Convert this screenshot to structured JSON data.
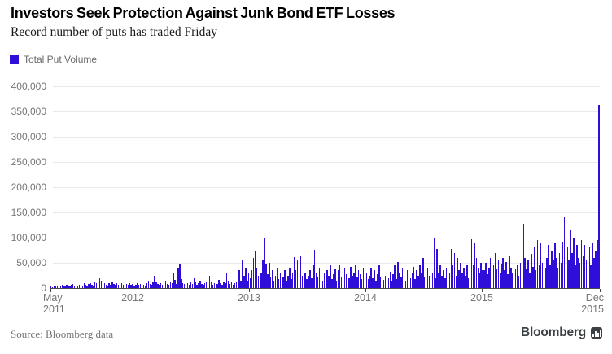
{
  "header": {
    "title": "Investors Seek Protection Against Junk Bond ETF Losses",
    "subtitle": "Record number of puts has traded Friday"
  },
  "legend": {
    "label": "Total Put Volume",
    "swatch_color": "#2E0ED8"
  },
  "footer": {
    "source": "Source: Bloomberg data",
    "brand": "Bloomberg"
  },
  "colors": {
    "bar": "#2E0ED8",
    "gridline": "#e5eaea",
    "axis": "#4a4a4a",
    "axis_text": "#757575",
    "background": "#ffffff"
  },
  "chart_data": {
    "type": "bar",
    "title": "Investors Seek Protection Against Junk Bond ETF Losses",
    "subtitle": "Record number of puts has traded Friday",
    "xlabel": "",
    "ylabel": "",
    "ylim": [
      0,
      400000
    ],
    "grid": "horizontal",
    "legend_position": "top-left",
    "x_range": [
      "May 2011",
      "Dec 2015"
    ],
    "yticks": [
      {
        "value": 400000,
        "label": "400,000"
      },
      {
        "value": 350000,
        "label": "350,000"
      },
      {
        "value": 300000,
        "label": "300,000"
      },
      {
        "value": 250000,
        "label": "250,000"
      },
      {
        "value": 200000,
        "label": "200,000"
      },
      {
        "value": 150000,
        "label": "150,000"
      },
      {
        "value": 100000,
        "label": "100,000"
      },
      {
        "value": 50000,
        "label": "50,000"
      },
      {
        "value": 0,
        "label": "0"
      }
    ],
    "x_axis": {
      "start_line1": "May",
      "start_line2": "2011",
      "end_line1": "Dec",
      "end_line2": "2015",
      "year_ticks": [
        {
          "label": "2012",
          "x": 101
        },
        {
          "label": "2013",
          "x": 244
        },
        {
          "label": "2014",
          "x": 387
        },
        {
          "label": "2015",
          "x": 530
        }
      ],
      "edge_tick_x": [
        0,
        675
      ]
    },
    "series": [
      {
        "name": "Total Put Volume",
        "color": "#2E0ED8",
        "peak_value": 363000,
        "values": [
          3000,
          2000,
          4000,
          3000,
          5000,
          4000,
          3000,
          6000,
          5000,
          4000,
          7000,
          5000,
          4000,
          6000,
          8000,
          5000,
          4000,
          3000,
          6000,
          7000,
          5000,
          9000,
          6000,
          4000,
          8000,
          10000,
          7000,
          5000,
          12000,
          9000,
          6000,
          21000,
          14000,
          8000,
          10000,
          7000,
          5000,
          9000,
          6000,
          11000,
          8000,
          6000,
          10000,
          7000,
          12000,
          9000,
          7000,
          5000,
          8000,
          6000,
          9000,
          7000,
          8000,
          5000,
          7000,
          10000,
          6000,
          8000,
          12000,
          7000,
          5000,
          9000,
          15000,
          8000,
          6000,
          11000,
          25000,
          13000,
          8000,
          6000,
          10000,
          7000,
          9000,
          14000,
          8000,
          6000,
          12000,
          9000,
          30000,
          16000,
          8000,
          40000,
          47000,
          18000,
          10000,
          8000,
          13000,
          9000,
          7000,
          11000,
          8000,
          20000,
          12000,
          7000,
          9000,
          15000,
          8000,
          6000,
          10000,
          13000,
          8000,
          25000,
          11000,
          7000,
          9000,
          12000,
          8000,
          16000,
          10000,
          7000,
          13000,
          9000,
          30000,
          14000,
          8000,
          11000,
          7000,
          9000,
          12000,
          8000,
          35000,
          15000,
          55000,
          25000,
          40000,
          15000,
          30000,
          20000,
          35000,
          60000,
          74000,
          40000,
          25000,
          18000,
          30000,
          55000,
          100000,
          48000,
          28000,
          50000,
          22000,
          35000,
          15000,
          25000,
          40000,
          18000,
          30000,
          12000,
          22000,
          35000,
          15000,
          25000,
          40000,
          18000,
          30000,
          62000,
          35000,
          55000,
          30000,
          65000,
          25000,
          40000,
          30000,
          18000,
          25000,
          35000,
          20000,
          45000,
          76000,
          30000,
          22000,
          40000,
          25000,
          15000,
          30000,
          20000,
          35000,
          25000,
          45000,
          18000,
          28000,
          38000,
          15000,
          35000,
          45000,
          22000,
          30000,
          40000,
          28000,
          35000,
          20000,
          42000,
          25000,
          30000,
          45000,
          22000,
          35000,
          28000,
          18000,
          40000,
          25000,
          30000,
          18000,
          25000,
          40000,
          20000,
          35000,
          15000,
          28000,
          45000,
          22000,
          35000,
          16000,
          25000,
          38000,
          20000,
          32000,
          14000,
          28000,
          45000,
          18000,
          52000,
          30000,
          22000,
          40000,
          25000,
          15000,
          35000,
          48000,
          20000,
          30000,
          42000,
          18000,
          35000,
          25000,
          45000,
          30000,
          60000,
          22000,
          35000,
          40000,
          25000,
          55000,
          30000,
          100000,
          20000,
          78000,
          30000,
          45000,
          25000,
          35000,
          20000,
          40000,
          55000,
          30000,
          78000,
          45000,
          70000,
          25000,
          60000,
          35000,
          50000,
          30000,
          40000,
          25000,
          45000,
          20000,
          35000,
          97000,
          45000,
          90000,
          60000,
          40000,
          30000,
          50000,
          35000,
          35000,
          50000,
          28000,
          40000,
          60000,
          32000,
          45000,
          70000,
          38000,
          55000,
          30000,
          48000,
          60000,
          35000,
          52000,
          28000,
          65000,
          40000,
          30000,
          55000,
          38000,
          45000,
          25000,
          50000,
          45000,
          127000,
          60000,
          38000,
          55000,
          30000,
          68000,
          42000,
          80000,
          35000,
          95000,
          45000,
          90000,
          50000,
          70000,
          40000,
          60000,
          85000,
          45000,
          75000,
          55000,
          88000,
          60000,
          40000,
          70000,
          50000,
          92000,
          140000,
          45000,
          80000,
          55000,
          115000,
          70000,
          100000,
          45000,
          85000,
          60000,
          50000,
          95000,
          65000,
          85000,
          55000,
          70000,
          80000,
          45000,
          90000,
          60000,
          75000,
          95000,
          363000
        ]
      }
    ]
  }
}
